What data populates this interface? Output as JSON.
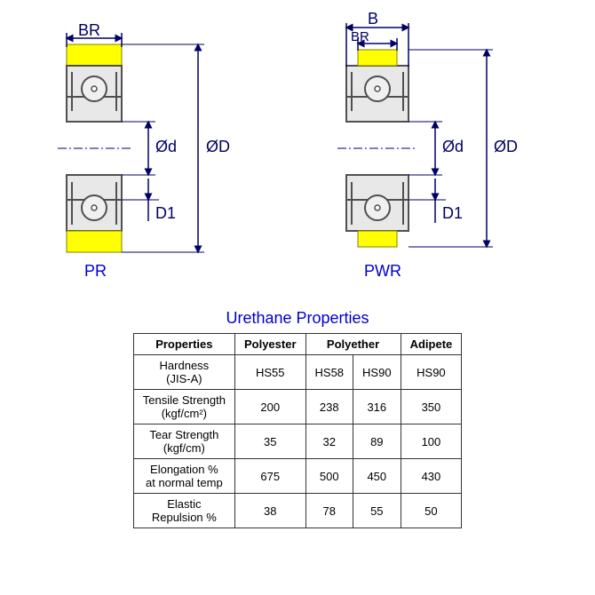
{
  "diagrams": {
    "left": {
      "type_label": "PR",
      "labels": {
        "BR": "BR",
        "d": "Ød",
        "D": "ØD",
        "D1": "D1"
      },
      "colors": {
        "urethane": "#ffff00",
        "bearing_fill": "#e8e8e8",
        "bearing_stroke": "#505050",
        "ball_fill": "#f0f0f0",
        "dimension": "#000066",
        "label": "#000066",
        "type_label": "#0000cc"
      }
    },
    "right": {
      "type_label": "PWR",
      "labels": {
        "B": "B",
        "BR": "BR",
        "d": "Ød",
        "D": "ØD",
        "D1": "D1"
      },
      "colors": {
        "urethane": "#ffff00",
        "bearing_fill": "#e8e8e8",
        "bearing_stroke": "#505050",
        "ball_fill": "#f0f0f0",
        "dimension": "#000066",
        "label": "#000066",
        "type_label": "#0000cc"
      }
    }
  },
  "table": {
    "title": "Urethane Properties",
    "title_color": "#0000cc",
    "border_color": "#333333",
    "columns": [
      "Properties",
      "Polyester",
      "Polyether",
      "Polyether",
      "Adipete"
    ],
    "column_spans": [
      1,
      1,
      2,
      1
    ],
    "header_merged": true,
    "rows": [
      {
        "label": "Hardness\n(JIS-A)",
        "values": [
          "HS55",
          "HS58",
          "HS90",
          "HS90"
        ]
      },
      {
        "label": "Tensile Strength\n(kgf/cm²)",
        "values": [
          "200",
          "238",
          "316",
          "350"
        ]
      },
      {
        "label": "Tear Strength\n(kgf/cm)",
        "values": [
          "35",
          "32",
          "89",
          "100"
        ]
      },
      {
        "label": "Elongation %\nat normal temp",
        "values": [
          "675",
          "500",
          "450",
          "430"
        ]
      },
      {
        "label": "Elastic\nRepulsion %",
        "values": [
          "38",
          "78",
          "55",
          "50"
        ]
      }
    ]
  }
}
